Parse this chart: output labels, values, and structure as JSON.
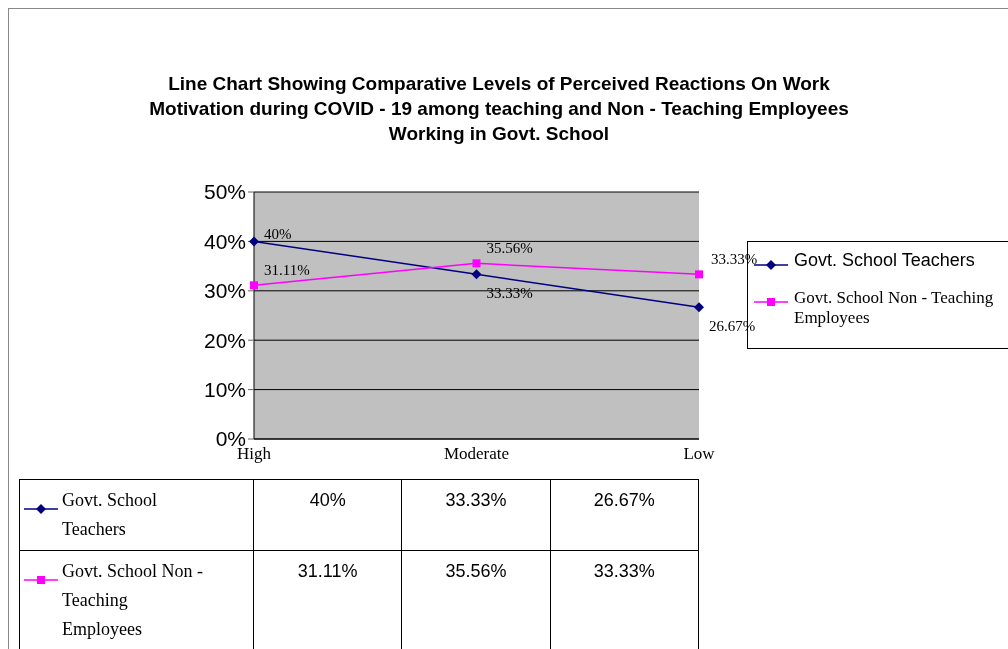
{
  "chart_data": {
    "type": "line",
    "title": "Line Chart Showing Comparative Levels of Perceived Reactions On Work Motivation during COVID - 19 among teaching and Non - Teaching Employees Working in Govt. School",
    "categories": [
      "High",
      "Moderate",
      "Low"
    ],
    "series": [
      {
        "name": "Govt. School Teachers",
        "color": "#000080",
        "marker": "diamond",
        "values": [
          40,
          33.33,
          26.67
        ],
        "value_labels": [
          "40%",
          "33.33%",
          "26.67%"
        ]
      },
      {
        "name": "Govt. School Non - Teaching Employees",
        "color": "#ff00ff",
        "marker": "square",
        "values": [
          31.11,
          35.56,
          33.33
        ],
        "value_labels": [
          "31.11%",
          "35.56%",
          "33.33%"
        ]
      }
    ],
    "ylim": [
      0,
      50
    ],
    "yticks": [
      {
        "value": 0,
        "label": "0%"
      },
      {
        "value": 10,
        "label": "10%"
      },
      {
        "value": 20,
        "label": "20%"
      },
      {
        "value": 30,
        "label": "30%"
      },
      {
        "value": 40,
        "label": "40%"
      },
      {
        "value": 50,
        "label": "50%"
      }
    ],
    "grid": "y",
    "legend": "right",
    "line_style": "solid"
  }
}
